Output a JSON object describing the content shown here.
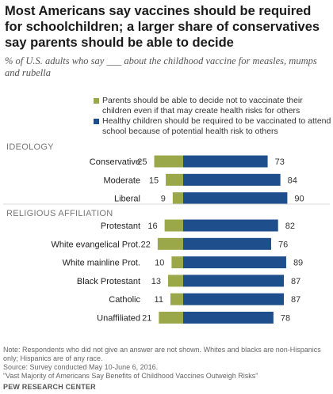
{
  "title": "Most Americans say vaccines should be required for schoolchildren; a larger share of conservatives say parents should be able to decide",
  "subtitle": "% of U.S. adults who say ___ about the childhood vaccine for measles, mumps and rubella",
  "legend": [
    {
      "label": "Parents should be able to decide not to vaccinate their children even if that may create health risks for others",
      "color": "#9aa84a"
    },
    {
      "label": "Healthy children should be required to be vaccinated to attend school because of potential health risk to others",
      "color": "#1f4e8c"
    }
  ],
  "notes": {
    "note": "Note: Respondents who did not give an answer are not shown. Whites and blacks are non-Hispanics only; Hispanics are of any race.",
    "source": "Source: Survey conducted May 10-June 6, 2016.",
    "report": "“Vast Majority of Americans Say Benefits of Childhood Vaccines Outweigh Risks”",
    "brand": "PEW RESEARCH CENTER"
  },
  "chart_data": {
    "type": "bar",
    "orientation": "horizontal-diverging",
    "colors": [
      "#9aa84a",
      "#1f4e8c"
    ],
    "series": [
      {
        "name": "Parents should be able to decide not to vaccinate their children even if that may create health risks for others",
        "values": [
          25,
          15,
          9,
          16,
          22,
          10,
          13,
          11,
          21
        ]
      },
      {
        "name": "Healthy children should be required to be vaccinated to attend school because of potential health risk to others",
        "values": [
          73,
          84,
          90,
          82,
          76,
          89,
          87,
          87,
          78
        ]
      }
    ],
    "groups": [
      {
        "label": "IDEOLOGY",
        "categories": [
          "Conservative",
          "Moderate",
          "Liberal"
        ]
      },
      {
        "label": "RELIGIOUS AFFILIATION",
        "categories": [
          "Protestant",
          "White evangelical Prot.",
          "White mainline Prot.",
          "Black Protestant",
          "Catholic",
          "Unaffiliated"
        ]
      }
    ],
    "categories": [
      "Conservative",
      "Moderate",
      "Liberal",
      "Protestant",
      "White evangelical Prot.",
      "White mainline Prot.",
      "Black Protestant",
      "Catholic",
      "Unaffiliated"
    ]
  }
}
